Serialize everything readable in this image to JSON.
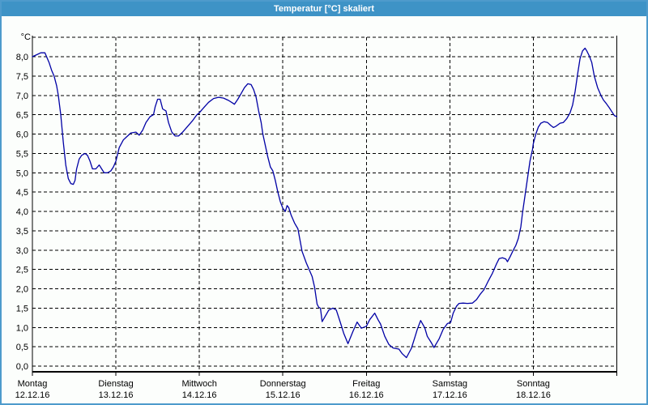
{
  "window": {
    "title": "Temperatur [°C] skaliert"
  },
  "colors": {
    "titlebar": "#3E93C6",
    "window_border": "#4E9BCC",
    "title_text": "#FFFFFF",
    "background": "#FCFEFC",
    "grid": "#000000",
    "axis": "#000000",
    "label_text": "#000000",
    "line": "#0000A5"
  },
  "chart_data": {
    "type": "line",
    "title": "Temperatur [°C] skaliert",
    "y_unit_label": "°C",
    "ylim": [
      0,
      8.5
    ],
    "y_tick_step": 0.5,
    "grid": true,
    "grid_style": "dashed",
    "legend": "none",
    "y_tick_labels": [
      "0,0",
      "0,5",
      "1,0",
      "1,5",
      "2,0",
      "2,5",
      "3,0",
      "3,5",
      "4,0",
      "4,5",
      "5,0",
      "5,5",
      "6,0",
      "6,5",
      "7,0",
      "7,5",
      "8,0"
    ],
    "x_days": [
      {
        "name": "Montag",
        "date": "12.12.16"
      },
      {
        "name": "Dienstag",
        "date": "13.12.16"
      },
      {
        "name": "Mittwoch",
        "date": "14.12.16"
      },
      {
        "name": "Donnerstag",
        "date": "15.12.16"
      },
      {
        "name": "Freitag",
        "date": "16.12.16"
      },
      {
        "name": "Samstag",
        "date": "17.12.16"
      },
      {
        "name": "Sonntag",
        "date": "18.12.16"
      }
    ],
    "series": [
      {
        "name": "Temperatur",
        "color": "#0000A5",
        "x_unit": "days_since_monday_midnight",
        "points": [
          [
            0.0,
            8.0
          ],
          [
            0.05,
            8.05
          ],
          [
            0.1,
            8.1
          ],
          [
            0.15,
            8.1
          ],
          [
            0.17,
            8.0
          ],
          [
            0.2,
            7.85
          ],
          [
            0.23,
            7.65
          ],
          [
            0.26,
            7.5
          ],
          [
            0.29,
            7.25
          ],
          [
            0.31,
            7.0
          ],
          [
            0.34,
            6.5
          ],
          [
            0.37,
            5.8
          ],
          [
            0.4,
            5.2
          ],
          [
            0.43,
            4.85
          ],
          [
            0.46,
            4.72
          ],
          [
            0.49,
            4.7
          ],
          [
            0.51,
            4.8
          ],
          [
            0.53,
            5.1
          ],
          [
            0.56,
            5.35
          ],
          [
            0.59,
            5.45
          ],
          [
            0.63,
            5.5
          ],
          [
            0.66,
            5.45
          ],
          [
            0.69,
            5.3
          ],
          [
            0.72,
            5.1
          ],
          [
            0.76,
            5.1
          ],
          [
            0.8,
            5.2
          ],
          [
            0.83,
            5.1
          ],
          [
            0.86,
            5.0
          ],
          [
            0.9,
            5.0
          ],
          [
            0.94,
            5.05
          ],
          [
            0.97,
            5.15
          ],
          [
            1.0,
            5.3
          ],
          [
            1.04,
            5.65
          ],
          [
            1.09,
            5.85
          ],
          [
            1.14,
            5.95
          ],
          [
            1.18,
            6.03
          ],
          [
            1.24,
            6.05
          ],
          [
            1.28,
            5.97
          ],
          [
            1.32,
            6.1
          ],
          [
            1.36,
            6.3
          ],
          [
            1.41,
            6.45
          ],
          [
            1.45,
            6.5
          ],
          [
            1.47,
            6.7
          ],
          [
            1.5,
            6.9
          ],
          [
            1.53,
            6.9
          ],
          [
            1.56,
            6.65
          ],
          [
            1.6,
            6.6
          ],
          [
            1.63,
            6.3
          ],
          [
            1.67,
            6.05
          ],
          [
            1.71,
            5.95
          ],
          [
            1.75,
            5.95
          ],
          [
            1.8,
            6.05
          ],
          [
            1.86,
            6.2
          ],
          [
            1.92,
            6.35
          ],
          [
            1.97,
            6.5
          ],
          [
            2.0,
            6.55
          ],
          [
            2.06,
            6.7
          ],
          [
            2.11,
            6.82
          ],
          [
            2.17,
            6.92
          ],
          [
            2.23,
            6.95
          ],
          [
            2.29,
            6.93
          ],
          [
            2.35,
            6.87
          ],
          [
            2.4,
            6.8
          ],
          [
            2.42,
            6.77
          ],
          [
            2.46,
            6.9
          ],
          [
            2.5,
            7.05
          ],
          [
            2.54,
            7.2
          ],
          [
            2.58,
            7.3
          ],
          [
            2.62,
            7.28
          ],
          [
            2.65,
            7.15
          ],
          [
            2.68,
            6.95
          ],
          [
            2.71,
            6.6
          ],
          [
            2.74,
            6.3
          ],
          [
            2.76,
            6.0
          ],
          [
            2.79,
            5.7
          ],
          [
            2.82,
            5.4
          ],
          [
            2.85,
            5.15
          ],
          [
            2.88,
            5.05
          ],
          [
            2.91,
            4.8
          ],
          [
            2.94,
            4.5
          ],
          [
            2.97,
            4.25
          ],
          [
            3.0,
            4.08
          ],
          [
            3.03,
            4.0
          ],
          [
            3.05,
            4.15
          ],
          [
            3.07,
            4.1
          ],
          [
            3.1,
            3.9
          ],
          [
            3.14,
            3.7
          ],
          [
            3.18,
            3.55
          ],
          [
            3.21,
            3.2
          ],
          [
            3.23,
            2.97
          ],
          [
            3.28,
            2.67
          ],
          [
            3.35,
            2.32
          ],
          [
            3.38,
            2.04
          ],
          [
            3.4,
            1.75
          ],
          [
            3.41,
            1.6
          ],
          [
            3.43,
            1.52
          ],
          [
            3.45,
            1.5
          ],
          [
            3.47,
            1.15
          ],
          [
            3.51,
            1.3
          ],
          [
            3.55,
            1.45
          ],
          [
            3.6,
            1.5
          ],
          [
            3.64,
            1.45
          ],
          [
            3.69,
            1.12
          ],
          [
            3.73,
            0.84
          ],
          [
            3.78,
            0.58
          ],
          [
            3.84,
            0.9
          ],
          [
            3.89,
            1.14
          ],
          [
            3.94,
            0.98
          ],
          [
            4.0,
            1.03
          ],
          [
            4.04,
            1.2
          ],
          [
            4.1,
            1.37
          ],
          [
            4.14,
            1.2
          ],
          [
            4.17,
            1.09
          ],
          [
            4.22,
            0.77
          ],
          [
            4.27,
            0.56
          ],
          [
            4.32,
            0.47
          ],
          [
            4.39,
            0.44
          ],
          [
            4.43,
            0.32
          ],
          [
            4.48,
            0.22
          ],
          [
            4.54,
            0.46
          ],
          [
            4.58,
            0.74
          ],
          [
            4.61,
            0.95
          ],
          [
            4.65,
            1.18
          ],
          [
            4.7,
            0.99
          ],
          [
            4.73,
            0.77
          ],
          [
            4.78,
            0.6
          ],
          [
            4.81,
            0.48
          ],
          [
            4.87,
            0.7
          ],
          [
            4.92,
            0.95
          ],
          [
            4.97,
            1.1
          ],
          [
            5.01,
            1.13
          ],
          [
            5.04,
            1.37
          ],
          [
            5.08,
            1.55
          ],
          [
            5.11,
            1.62
          ],
          [
            5.16,
            1.63
          ],
          [
            5.21,
            1.62
          ],
          [
            5.27,
            1.63
          ],
          [
            5.32,
            1.72
          ],
          [
            5.36,
            1.85
          ],
          [
            5.41,
            1.98
          ],
          [
            5.46,
            2.2
          ],
          [
            5.51,
            2.4
          ],
          [
            5.56,
            2.65
          ],
          [
            5.59,
            2.78
          ],
          [
            5.63,
            2.8
          ],
          [
            5.67,
            2.77
          ],
          [
            5.69,
            2.7
          ],
          [
            5.72,
            2.82
          ],
          [
            5.76,
            3.0
          ],
          [
            5.79,
            3.12
          ],
          [
            5.82,
            3.3
          ],
          [
            5.85,
            3.6
          ],
          [
            5.87,
            3.95
          ],
          [
            5.9,
            4.4
          ],
          [
            5.93,
            4.85
          ],
          [
            5.96,
            5.3
          ],
          [
            5.99,
            5.6
          ],
          [
            6.0,
            5.75
          ],
          [
            6.03,
            6.0
          ],
          [
            6.06,
            6.18
          ],
          [
            6.09,
            6.28
          ],
          [
            6.13,
            6.32
          ],
          [
            6.17,
            6.3
          ],
          [
            6.21,
            6.22
          ],
          [
            6.24,
            6.17
          ],
          [
            6.27,
            6.2
          ],
          [
            6.3,
            6.25
          ],
          [
            6.32,
            6.28
          ],
          [
            6.36,
            6.3
          ],
          [
            6.4,
            6.4
          ],
          [
            6.44,
            6.55
          ],
          [
            6.47,
            6.75
          ],
          [
            6.5,
            7.1
          ],
          [
            6.53,
            7.55
          ],
          [
            6.56,
            7.95
          ],
          [
            6.59,
            8.15
          ],
          [
            6.62,
            8.22
          ],
          [
            6.64,
            8.15
          ],
          [
            6.67,
            8.02
          ],
          [
            6.7,
            7.85
          ],
          [
            6.73,
            7.5
          ],
          [
            6.77,
            7.2
          ],
          [
            6.81,
            7.0
          ],
          [
            6.84,
            6.88
          ],
          [
            6.87,
            6.8
          ],
          [
            6.91,
            6.68
          ],
          [
            6.94,
            6.58
          ],
          [
            6.97,
            6.48
          ],
          [
            7.0,
            6.45
          ]
        ]
      }
    ]
  }
}
